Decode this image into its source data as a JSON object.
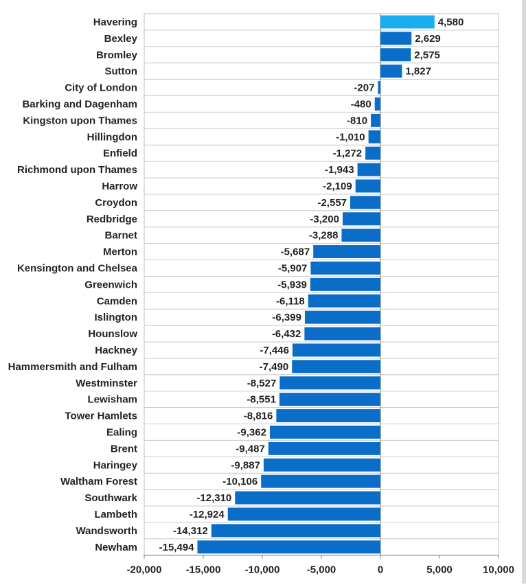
{
  "chart_data": {
    "type": "bar",
    "orientation": "horizontal",
    "title": "",
    "xlabel": "",
    "ylabel": "",
    "xlim": [
      -20000,
      10000
    ],
    "x_ticks": [
      -20000,
      -15000,
      -10000,
      -5000,
      0,
      5000,
      10000
    ],
    "x_tick_labels": [
      "-20,000",
      "-15,000",
      "-10,000",
      "-5,000",
      "0",
      "5,000",
      "10,000"
    ],
    "grid": "horizontal",
    "legend": "none",
    "colors": {
      "default": "#0a6ec8",
      "highlight": "#1aaef0"
    },
    "categories": [
      "Havering",
      "Bexley",
      "Bromley",
      "Sutton",
      "City of London",
      "Barking and Dagenham",
      "Kingston upon Thames",
      "Hillingdon",
      "Enfield",
      "Richmond upon Thames",
      "Harrow",
      "Croydon",
      "Redbridge",
      "Barnet",
      "Merton",
      "Kensington and Chelsea",
      "Greenwich",
      "Camden",
      "Islington",
      "Hounslow",
      "Hackney",
      "Hammersmith and Fulham",
      "Westminster",
      "Lewisham",
      "Tower Hamlets",
      "Ealing",
      "Brent",
      "Haringey",
      "Waltham Forest",
      "Southwark",
      "Lambeth",
      "Wandsworth",
      "Newham"
    ],
    "values": [
      4580,
      2629,
      2575,
      1827,
      -207,
      -480,
      -810,
      -1010,
      -1272,
      -1943,
      -2109,
      -2557,
      -3200,
      -3288,
      -5687,
      -5907,
      -5939,
      -6118,
      -6399,
      -6432,
      -7446,
      -7490,
      -8527,
      -8551,
      -8816,
      -9362,
      -9487,
      -9887,
      -10106,
      -12310,
      -12924,
      -14312,
      -15494
    ],
    "value_labels": [
      "4,580",
      "2,629",
      "2,575",
      "1,827",
      "-207",
      "-480",
      "-810",
      "-1,010",
      "-1,272",
      "-1,943",
      "-2,109",
      "-2,557",
      "-3,200",
      "-3,288",
      "-5,687",
      "-5,907",
      "-5,939",
      "-6,118",
      "-6,399",
      "-6,432",
      "-7,446",
      "-7,490",
      "-8,527",
      "-8,551",
      "-8,816",
      "-9,362",
      "-9,487",
      "-9,887",
      "-10,106",
      "-12,310",
      "-12,924",
      "-14,312",
      "-15,494"
    ],
    "highlight_index": 0
  }
}
